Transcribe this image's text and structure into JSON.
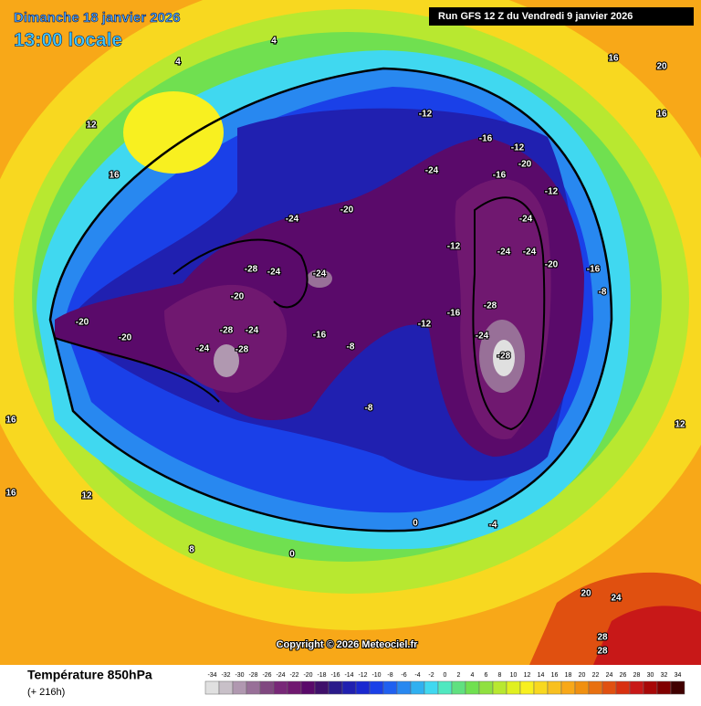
{
  "header": {
    "date": "Dimanche 18 janvier 2026",
    "time": "13:00 locale",
    "run": "Run GFS 12 Z du Vendredi 9 janvier 2026"
  },
  "copyright": "Copyright © 2026 Meteociel.fr",
  "footer": {
    "title": "Température 850hPa",
    "subtitle": "(+ 216h)"
  },
  "scale": {
    "values": [
      -34,
      -32,
      -30,
      -28,
      -26,
      -24,
      -22,
      -20,
      -18,
      -16,
      -14,
      -12,
      -10,
      -8,
      -6,
      -4,
      -2,
      0,
      2,
      4,
      6,
      8,
      10,
      12,
      14,
      16,
      18,
      20,
      22,
      24,
      26,
      28,
      30,
      32,
      34
    ],
    "colors": [
      "#e0e0e0",
      "#c8c0c8",
      "#b098b0",
      "#987098",
      "#804880",
      "#782878",
      "#701870",
      "#5a0a6a",
      "#40106a",
      "#2a1a8a",
      "#2020b0",
      "#1a28d0",
      "#1a40e8",
      "#2060f0",
      "#2888f0",
      "#30b0f0",
      "#40d8f0",
      "#50e8c0",
      "#60e080",
      "#70e050",
      "#90e040",
      "#b8e830",
      "#e0f020",
      "#f8f020",
      "#f8d820",
      "#f8c020",
      "#f8a818",
      "#f09010",
      "#e87010",
      "#e05010",
      "#d83010",
      "#c81818",
      "#a80808",
      "#800000",
      "#400000"
    ]
  },
  "map_labels": [
    -20,
    -24,
    -24,
    -28,
    -24,
    -20,
    -20,
    -20,
    -24,
    -28,
    -28,
    -24,
    -16,
    -8,
    -8,
    -12,
    -16,
    -28,
    -24,
    -28,
    -24,
    -24,
    -24,
    -16,
    -12,
    -20,
    -16,
    -24,
    -12,
    -12,
    -12,
    -20,
    -16,
    -8,
    16,
    16,
    12,
    8,
    0,
    0,
    -4,
    20,
    24,
    28,
    28,
    12,
    16,
    20,
    16,
    12,
    16,
    4,
    4
  ]
}
